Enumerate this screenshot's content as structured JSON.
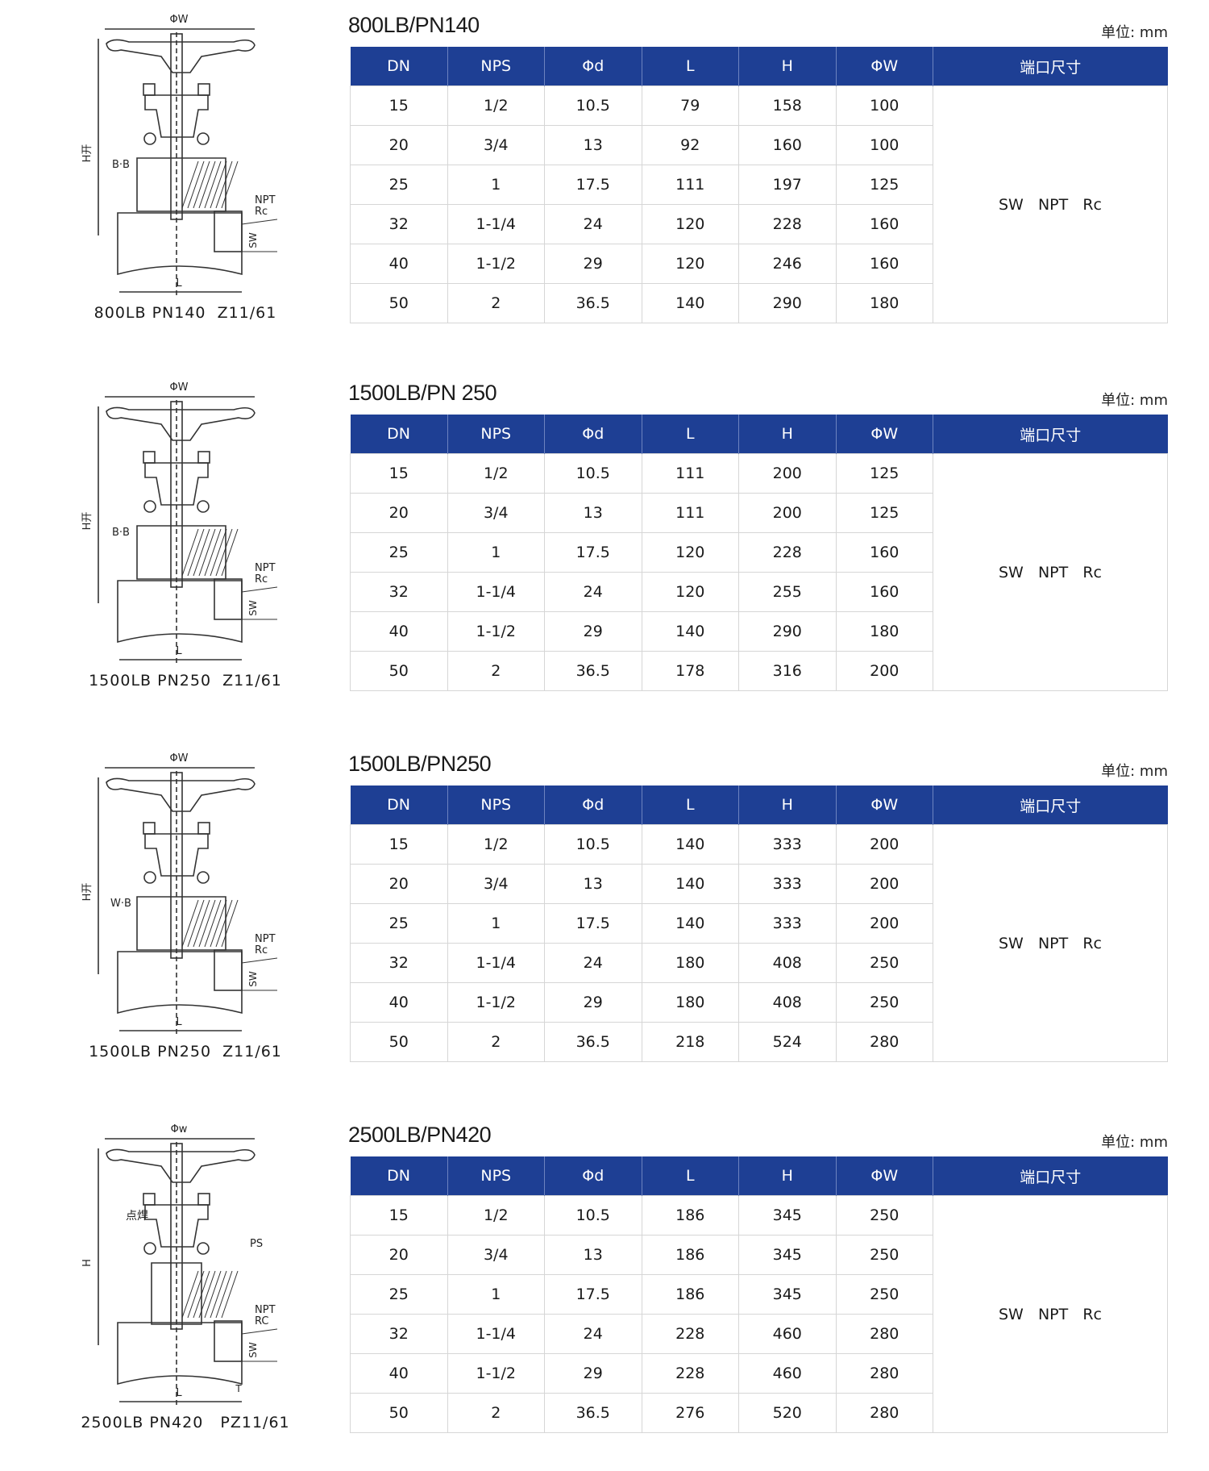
{
  "unit_label": "单位: mm",
  "columns": [
    "DN",
    "NPS",
    "Φd",
    "L",
    "H",
    "ΦW",
    "端口尺寸"
  ],
  "sections": [
    {
      "title": "800LB/PN140",
      "caption": "800LB PN140  Z11/61",
      "drawing_labels": {
        "width": "ΦW",
        "height": "H开",
        "detail": "B·B",
        "thread1": "NPT",
        "thread2": "Rc",
        "socket": "SW",
        "length": "L"
      },
      "port": "SW   NPT   Rc",
      "rows": [
        [
          "15",
          "1/2",
          "10.5",
          "79",
          "158",
          "100"
        ],
        [
          "20",
          "3/4",
          "13",
          "92",
          "160",
          "100"
        ],
        [
          "25",
          "1",
          "17.5",
          "111",
          "197",
          "125"
        ],
        [
          "32",
          "1-1/4",
          "24",
          "120",
          "228",
          "160"
        ],
        [
          "40",
          "1-1/2",
          "29",
          "120",
          "246",
          "160"
        ],
        [
          "50",
          "2",
          "36.5",
          "140",
          "290",
          "180"
        ]
      ]
    },
    {
      "title": "1500LB/PN 250",
      "caption": "1500LB PN250  Z11/61",
      "drawing_labels": {
        "width": "ΦW",
        "height": "H开",
        "detail": "B·B",
        "thread1": "NPT",
        "thread2": "Rc",
        "socket": "SW",
        "length": "L"
      },
      "port": "SW   NPT   Rc",
      "rows": [
        [
          "15",
          "1/2",
          "10.5",
          "111",
          "200",
          "125"
        ],
        [
          "20",
          "3/4",
          "13",
          "111",
          "200",
          "125"
        ],
        [
          "25",
          "1",
          "17.5",
          "120",
          "228",
          "160"
        ],
        [
          "32",
          "1-1/4",
          "24",
          "120",
          "255",
          "160"
        ],
        [
          "40",
          "1-1/2",
          "29",
          "140",
          "290",
          "180"
        ],
        [
          "50",
          "2",
          "36.5",
          "178",
          "316",
          "200"
        ]
      ]
    },
    {
      "title": "1500LB/PN250",
      "caption": "1500LB PN250  Z11/61",
      "drawing_labels": {
        "width": "ΦW",
        "height": "H开",
        "detail": "W·B",
        "thread1": "NPT",
        "thread2": "Rc",
        "socket": "SW",
        "length": "L"
      },
      "port": "SW   NPT   Rc",
      "rows": [
        [
          "15",
          "1/2",
          "10.5",
          "140",
          "333",
          "200"
        ],
        [
          "20",
          "3/4",
          "13",
          "140",
          "333",
          "200"
        ],
        [
          "25",
          "1",
          "17.5",
          "140",
          "333",
          "200"
        ],
        [
          "32",
          "1-1/4",
          "24",
          "180",
          "408",
          "250"
        ],
        [
          "40",
          "1-1/2",
          "29",
          "180",
          "408",
          "250"
        ],
        [
          "50",
          "2",
          "36.5",
          "218",
          "524",
          "280"
        ]
      ]
    },
    {
      "title": "2500LB/PN420",
      "caption": "2500LB PN420   PZ11/61",
      "drawing_labels": {
        "width": "Φw",
        "height": "H",
        "detail": "点焊",
        "seal": "PS",
        "thread1": "NPT",
        "thread2": "RC",
        "socket": "SW",
        "wall": "T",
        "length": "L"
      },
      "port": "SW   NPT   Rc",
      "rows": [
        [
          "15",
          "1/2",
          "10.5",
          "186",
          "345",
          "250"
        ],
        [
          "20",
          "3/4",
          "13",
          "186",
          "345",
          "250"
        ],
        [
          "25",
          "1",
          "17.5",
          "186",
          "345",
          "250"
        ],
        [
          "32",
          "1-1/4",
          "24",
          "228",
          "460",
          "280"
        ],
        [
          "40",
          "1-1/2",
          "29",
          "228",
          "460",
          "280"
        ],
        [
          "50",
          "2",
          "36.5",
          "276",
          "520",
          "280"
        ]
      ]
    }
  ],
  "colors": {
    "header_bg": "#1e3f94",
    "header_text": "#ffffff",
    "grid": "#d6d6d6"
  }
}
